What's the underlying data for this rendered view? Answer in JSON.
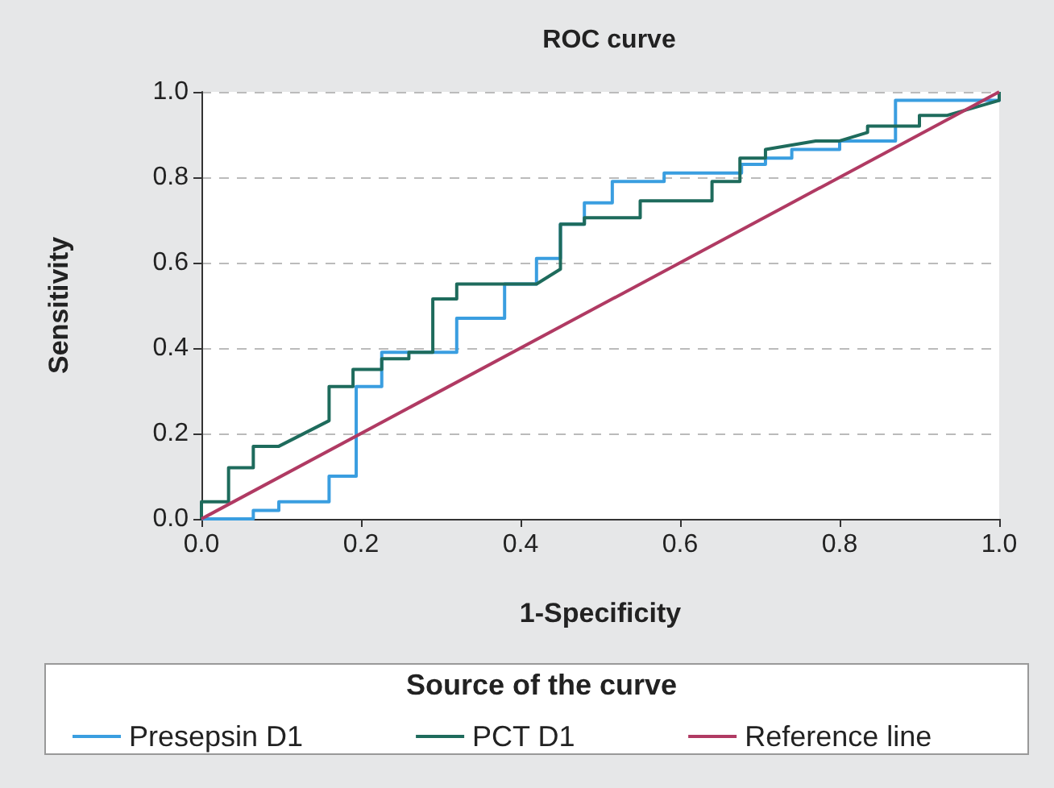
{
  "chart_data": {
    "type": "line",
    "title": "ROC curve",
    "xlabel": "1-Specificity",
    "ylabel": "Sensitivity",
    "legend_title": "Source of the curve",
    "xlim": [
      0,
      1
    ],
    "ylim": [
      0,
      1
    ],
    "xticks": [
      {
        "value": 0,
        "label": "0.0"
      },
      {
        "value": 0.2,
        "label": "0.2"
      },
      {
        "value": 0.4,
        "label": "0.4"
      },
      {
        "value": 0.6,
        "label": "0.6"
      },
      {
        "value": 0.8,
        "label": "0.8"
      },
      {
        "value": 1,
        "label": "1.0"
      }
    ],
    "yticks": [
      {
        "value": 0,
        "label": "0.0"
      },
      {
        "value": 0.2,
        "label": "0.2"
      },
      {
        "value": 0.4,
        "label": "0.4"
      },
      {
        "value": 0.6,
        "label": "0.6"
      },
      {
        "value": 0.8,
        "label": "0.8"
      },
      {
        "value": 1,
        "label": "1.0"
      }
    ],
    "grid": "y",
    "legend": "bottom",
    "marker": "none",
    "line_style": "solid",
    "series": [
      {
        "name": "Presepsin D1",
        "color": "#3a9ee0",
        "x": [
          0,
          0.065,
          0.065,
          0.097,
          0.097,
          0.16,
          0.16,
          0.194,
          0.194,
          0.226,
          0.226,
          0.32,
          0.32,
          0.38,
          0.38,
          0.42,
          0.42,
          0.45,
          0.45,
          0.48,
          0.48,
          0.515,
          0.515,
          0.58,
          0.58,
          0.677,
          0.677,
          0.707,
          0.707,
          0.74,
          0.74,
          0.8,
          0.8,
          0.87,
          0.87,
          1,
          1
        ],
        "values": [
          0,
          0,
          0.02,
          0.02,
          0.04,
          0.04,
          0.1,
          0.1,
          0.31,
          0.31,
          0.39,
          0.39,
          0.47,
          0.47,
          0.55,
          0.55,
          0.61,
          0.61,
          0.69,
          0.69,
          0.74,
          0.74,
          0.79,
          0.79,
          0.81,
          0.81,
          0.83,
          0.83,
          0.845,
          0.845,
          0.865,
          0.865,
          0.885,
          0.885,
          0.98,
          0.98,
          1
        ]
      },
      {
        "name": "PCT D1",
        "color": "#1e6b5c",
        "x": [
          0,
          0,
          0.034,
          0.034,
          0.065,
          0.065,
          0.097,
          0.16,
          0.16,
          0.19,
          0.19,
          0.226,
          0.226,
          0.26,
          0.26,
          0.29,
          0.29,
          0.32,
          0.32,
          0.42,
          0.45,
          0.45,
          0.48,
          0.48,
          0.55,
          0.55,
          0.64,
          0.64,
          0.675,
          0.675,
          0.707,
          0.707,
          0.77,
          0.8,
          0.835,
          0.835,
          0.9,
          0.9,
          0.935,
          1,
          1
        ],
        "values": [
          0,
          0.04,
          0.04,
          0.12,
          0.12,
          0.17,
          0.17,
          0.23,
          0.31,
          0.31,
          0.35,
          0.35,
          0.375,
          0.375,
          0.39,
          0.39,
          0.515,
          0.515,
          0.55,
          0.55,
          0.585,
          0.69,
          0.69,
          0.705,
          0.705,
          0.745,
          0.745,
          0.79,
          0.79,
          0.845,
          0.845,
          0.865,
          0.885,
          0.885,
          0.905,
          0.92,
          0.92,
          0.945,
          0.945,
          0.98,
          1
        ]
      },
      {
        "name": "Reference line",
        "color": "#b03a63",
        "x": [
          0,
          1
        ],
        "values": [
          0,
          1
        ]
      }
    ]
  }
}
